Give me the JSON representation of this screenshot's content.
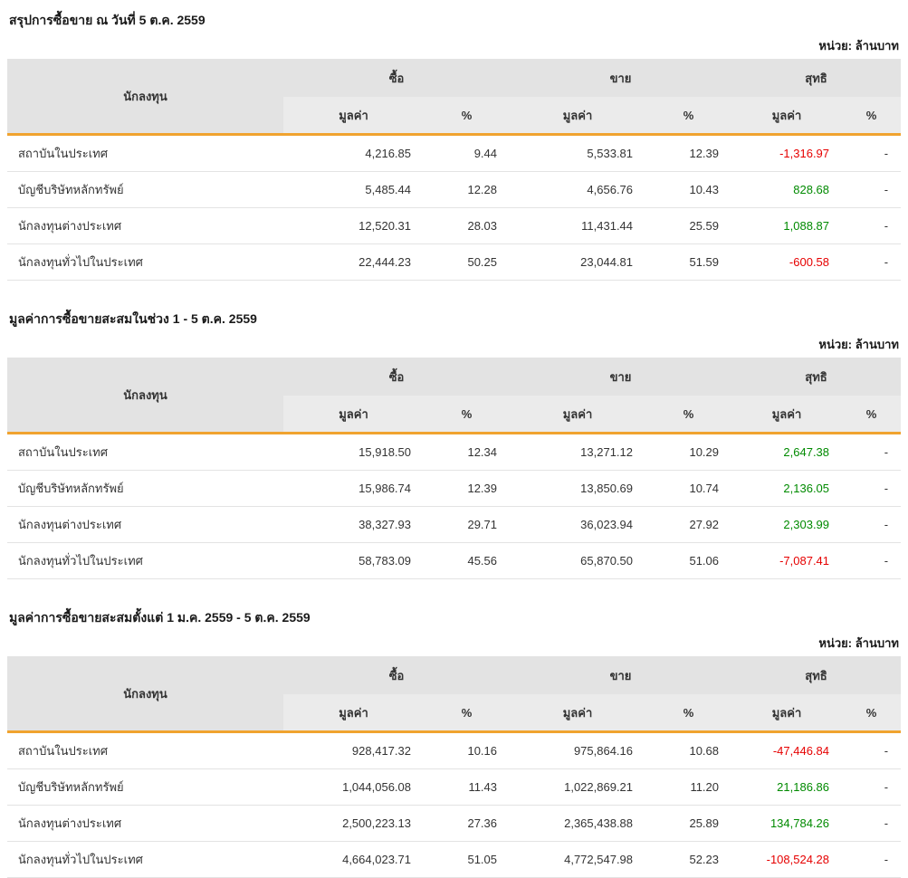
{
  "page": {
    "unit_label": "หน่วย: ล้านบาท"
  },
  "columns": {
    "investor": "นักลงทุน",
    "buy": "ซื้อ",
    "sell": "ขาย",
    "net": "สุทธิ",
    "value": "มูลค่า",
    "percent": "%"
  },
  "colors": {
    "positive": "#008a00",
    "negative": "#e60000",
    "accent": "#f0a32f"
  },
  "tables": [
    {
      "title": "สรุปการซื้อขาย ณ วันที่ 5 ต.ค. 2559",
      "rows": [
        {
          "investor": "สถาบันในประเทศ",
          "buy_value": "4,216.85",
          "buy_pct": "9.44",
          "sell_value": "5,533.81",
          "sell_pct": "12.39",
          "net_value": "-1,316.97",
          "net_pct": "-",
          "net_sign": "negative"
        },
        {
          "investor": "บัญชีบริษัทหลักทรัพย์",
          "buy_value": "5,485.44",
          "buy_pct": "12.28",
          "sell_value": "4,656.76",
          "sell_pct": "10.43",
          "net_value": "828.68",
          "net_pct": "-",
          "net_sign": "positive"
        },
        {
          "investor": "นักลงทุนต่างประเทศ",
          "buy_value": "12,520.31",
          "buy_pct": "28.03",
          "sell_value": "11,431.44",
          "sell_pct": "25.59",
          "net_value": "1,088.87",
          "net_pct": "-",
          "net_sign": "positive"
        },
        {
          "investor": "นักลงทุนทั่วไปในประเทศ",
          "buy_value": "22,444.23",
          "buy_pct": "50.25",
          "sell_value": "23,044.81",
          "sell_pct": "51.59",
          "net_value": "-600.58",
          "net_pct": "-",
          "net_sign": "negative"
        }
      ]
    },
    {
      "title": "มูลค่าการซื้อขายสะสมในช่วง 1 - 5 ต.ค. 2559",
      "rows": [
        {
          "investor": "สถาบันในประเทศ",
          "buy_value": "15,918.50",
          "buy_pct": "12.34",
          "sell_value": "13,271.12",
          "sell_pct": "10.29",
          "net_value": "2,647.38",
          "net_pct": "-",
          "net_sign": "positive"
        },
        {
          "investor": "บัญชีบริษัทหลักทรัพย์",
          "buy_value": "15,986.74",
          "buy_pct": "12.39",
          "sell_value": "13,850.69",
          "sell_pct": "10.74",
          "net_value": "2,136.05",
          "net_pct": "-",
          "net_sign": "positive"
        },
        {
          "investor": "นักลงทุนต่างประเทศ",
          "buy_value": "38,327.93",
          "buy_pct": "29.71",
          "sell_value": "36,023.94",
          "sell_pct": "27.92",
          "net_value": "2,303.99",
          "net_pct": "-",
          "net_sign": "positive"
        },
        {
          "investor": "นักลงทุนทั่วไปในประเทศ",
          "buy_value": "58,783.09",
          "buy_pct": "45.56",
          "sell_value": "65,870.50",
          "sell_pct": "51.06",
          "net_value": "-7,087.41",
          "net_pct": "-",
          "net_sign": "negative"
        }
      ]
    },
    {
      "title": "มูลค่าการซื้อขายสะสมตั้งแต่ 1 ม.ค. 2559 - 5 ต.ค. 2559",
      "rows": [
        {
          "investor": "สถาบันในประเทศ",
          "buy_value": "928,417.32",
          "buy_pct": "10.16",
          "sell_value": "975,864.16",
          "sell_pct": "10.68",
          "net_value": "-47,446.84",
          "net_pct": "-",
          "net_sign": "negative"
        },
        {
          "investor": "บัญชีบริษัทหลักทรัพย์",
          "buy_value": "1,044,056.08",
          "buy_pct": "11.43",
          "sell_value": "1,022,869.21",
          "sell_pct": "11.20",
          "net_value": "21,186.86",
          "net_pct": "-",
          "net_sign": "positive"
        },
        {
          "investor": "นักลงทุนต่างประเทศ",
          "buy_value": "2,500,223.13",
          "buy_pct": "27.36",
          "sell_value": "2,365,438.88",
          "sell_pct": "25.89",
          "net_value": "134,784.26",
          "net_pct": "-",
          "net_sign": "positive"
        },
        {
          "investor": "นักลงทุนทั่วไปในประเทศ",
          "buy_value": "4,664,023.71",
          "buy_pct": "51.05",
          "sell_value": "4,772,547.98",
          "sell_pct": "52.23",
          "net_value": "-108,524.28",
          "net_pct": "-",
          "net_sign": "negative"
        }
      ]
    }
  ]
}
